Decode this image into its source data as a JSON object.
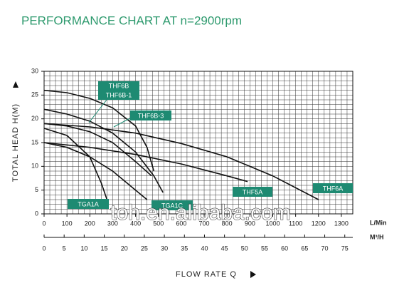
{
  "chart_data": {
    "type": "line",
    "title": "PERFORMANCE CHART AT n=2900rpm",
    "ylabel": "TOTAL HEAD H(M)",
    "xlabel": "FLOW RATE Q",
    "xunit": "L/Min",
    "x2unit": "M³/H",
    "watermark": "toh.en.alibaba.com",
    "xlim": [
      0,
      1350
    ],
    "xticks": [
      0,
      100,
      200,
      300,
      400,
      500,
      600,
      700,
      800,
      900,
      1000,
      1100,
      1200,
      1300
    ],
    "x2lim": [
      0,
      77
    ],
    "x2ticks": [
      0,
      5,
      10,
      15,
      20,
      25,
      30,
      35,
      40,
      45,
      50,
      55,
      60,
      65,
      70,
      75
    ],
    "ylim": [
      0,
      30
    ],
    "yticks": [
      0,
      5,
      10,
      15,
      20,
      25,
      30
    ],
    "grid": {
      "x_step": 25,
      "y_step": 1
    },
    "color": "#111111",
    "series": [
      {
        "name": "THF6B",
        "x": [
          0,
          100,
          200,
          300,
          400,
          450,
          480
        ],
        "values": [
          26,
          25.5,
          24.3,
          22.3,
          18.5,
          14,
          9
        ]
      },
      {
        "name": "THF6B-1",
        "x": [
          0,
          100,
          200,
          300,
          400,
          480,
          520
        ],
        "values": [
          22,
          21,
          19.5,
          17,
          13,
          8,
          4.5
        ]
      },
      {
        "name": "THF6B-3",
        "x": [
          0,
          100,
          200,
          300,
          400,
          470
        ],
        "values": [
          19,
          18.5,
          17.3,
          15,
          11,
          8
        ]
      },
      {
        "name": "THF5A",
        "x": [
          0,
          200,
          400,
          600,
          800,
          890
        ],
        "values": [
          15,
          14,
          12.5,
          10.5,
          8,
          6.8
        ]
      },
      {
        "name": "THF6A",
        "x": [
          0,
          200,
          400,
          600,
          800,
          1000,
          1200
        ],
        "values": [
          19,
          18.3,
          17,
          14.8,
          12,
          8,
          3
        ]
      },
      {
        "name": "TGA1A",
        "x": [
          0,
          100,
          200,
          250,
          275
        ],
        "values": [
          18,
          16.5,
          12,
          6.5,
          3
        ]
      },
      {
        "name": "TGA1C",
        "x": [
          0,
          100,
          200,
          300,
          400,
          450
        ],
        "values": [
          15,
          14,
          12,
          9,
          5,
          3
        ]
      }
    ]
  }
}
